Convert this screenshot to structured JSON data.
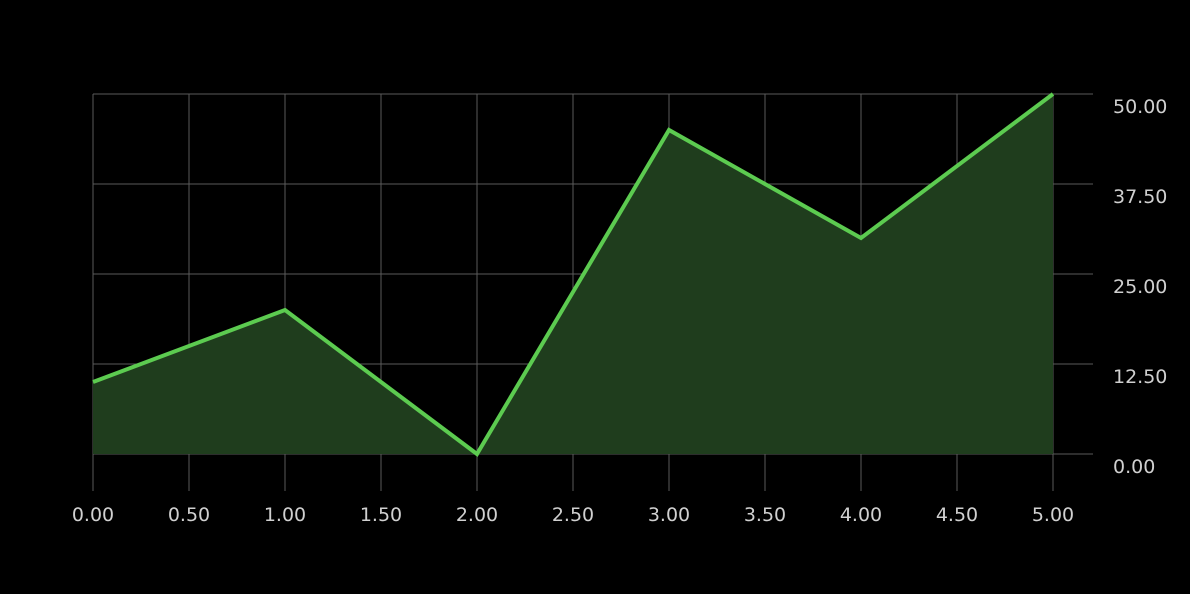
{
  "chart_data": {
    "type": "area",
    "title": "",
    "xlabel": "",
    "ylabel": "",
    "x": [
      0,
      1,
      2,
      3,
      4,
      5
    ],
    "series": [
      {
        "values": [
          10,
          20,
          0,
          45,
          30,
          50
        ]
      }
    ],
    "xlim": [
      0,
      5
    ],
    "ylim": [
      0,
      50
    ],
    "x_ticks": [
      "0.00",
      "0.50",
      "1.00",
      "1.50",
      "2.00",
      "2.50",
      "3.00",
      "3.50",
      "4.00",
      "4.50",
      "5.00"
    ],
    "y_ticks": [
      "0.00",
      "12.50",
      "25.00",
      "37.50",
      "50.00"
    ],
    "y_axis_side": "right",
    "grid": true,
    "colors": {
      "background": "#000000",
      "line": "#5ccb50",
      "fill": "#1f3d1d",
      "grid": "#5a5a5a",
      "tick_text": "#d0d0d0"
    }
  }
}
